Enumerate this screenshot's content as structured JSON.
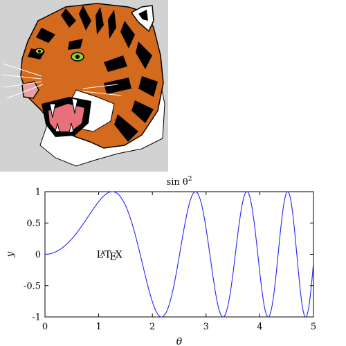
{
  "image_panel": {
    "subject": "tiger-head-illustration",
    "background": "#d2d2d2",
    "colors": {
      "orange": "#d46a1e",
      "black": "#000000",
      "white": "#ffffff",
      "eye": "#8fd13a",
      "mouth": "#e8707a"
    }
  },
  "chart_data": {
    "type": "line",
    "function": "sin(theta^2)",
    "title_text": "sin θ",
    "title_exponent": "2",
    "xlabel": "θ",
    "ylabel": "y",
    "xlim": [
      0,
      5
    ],
    "ylim": [
      -1,
      1
    ],
    "x_ticks": [
      "0",
      "1",
      "2",
      "3",
      "4",
      "5"
    ],
    "x_tick_values": [
      0,
      1,
      2,
      3,
      4,
      5
    ],
    "y_ticks": [
      "1",
      "0.5",
      "0",
      "-0.5",
      "-1"
    ],
    "y_tick_values": [
      1,
      0.5,
      0,
      -0.5,
      -1
    ],
    "grid": false,
    "annotation": {
      "text": "LaTeX",
      "x": 1.0,
      "y": 0.0
    },
    "series": [
      {
        "color": "#2222ff",
        "x": [
          0,
          0.25,
          0.5,
          0.75,
          1.0,
          1.25,
          1.5,
          1.75,
          2.0,
          2.25,
          2.5,
          2.75,
          3.0,
          3.25,
          3.5,
          3.75,
          4.0,
          4.25,
          4.5,
          4.75,
          5.0
        ],
        "y": [
          0,
          0.06,
          0.25,
          0.53,
          0.84,
          1.0,
          0.78,
          0.08,
          -0.76,
          -0.93,
          0.03,
          0.96,
          0.41,
          -0.91,
          -0.31,
          1.0,
          -0.29,
          -0.74,
          0.96,
          -0.54,
          -0.13
        ]
      }
    ]
  }
}
